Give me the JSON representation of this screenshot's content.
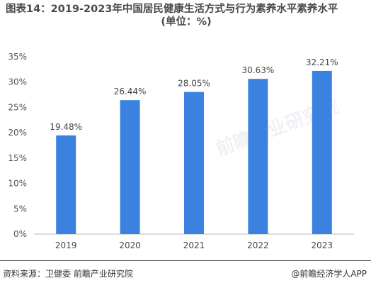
{
  "header": {
    "title_line1": "图表14：2019-2023年中国居民健康生活方式与行为素养水平素养水平",
    "title_line2": "(单位：%)"
  },
  "chart_data": {
    "type": "bar",
    "categories": [
      "2019",
      "2020",
      "2021",
      "2022",
      "2023"
    ],
    "values": [
      19.48,
      26.44,
      28.05,
      30.63,
      32.21
    ],
    "value_labels": [
      "19.48%",
      "26.44%",
      "28.05%",
      "30.63%",
      "32.21%"
    ],
    "ylim": [
      0,
      35
    ],
    "yticks": [
      "0%",
      "5%",
      "10%",
      "15%",
      "20%",
      "25%",
      "30%",
      "35%"
    ],
    "bar_color": "#3b82e0",
    "grid": false
  },
  "footer": {
    "source": "资料来源：卫健委 前瞻产业研究院",
    "brand": "@前瞻经济学人APP"
  },
  "watermark": "前瞻产业研究院"
}
